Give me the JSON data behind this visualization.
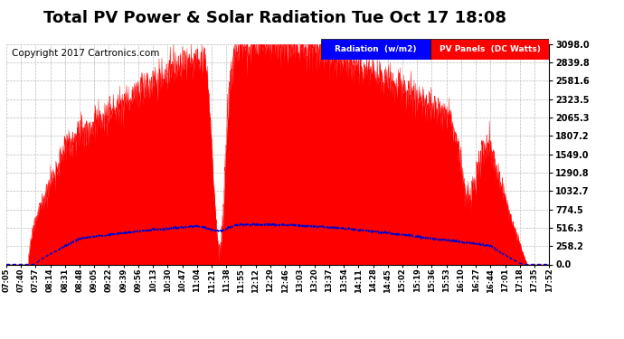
{
  "title": "Total PV Power & Solar Radiation Tue Oct 17 18:08",
  "copyright": "Copyright 2017 Cartronics.com",
  "bg_color": "#ffffff",
  "plot_bg_color": "#ffffff",
  "grid_color": "#bbbbbb",
  "y_max": 3098.0,
  "y_min": 0.0,
  "y_ticks": [
    0.0,
    258.2,
    516.3,
    774.5,
    1032.7,
    1290.8,
    1549.0,
    1807.2,
    2065.3,
    2323.5,
    2581.6,
    2839.8,
    3098.0
  ],
  "x_labels": [
    "07:05",
    "07:40",
    "07:57",
    "08:14",
    "08:31",
    "08:48",
    "09:05",
    "09:22",
    "09:39",
    "09:56",
    "10:13",
    "10:30",
    "10:47",
    "11:04",
    "11:21",
    "11:38",
    "11:55",
    "12:12",
    "12:29",
    "12:46",
    "13:03",
    "13:20",
    "13:37",
    "13:54",
    "14:11",
    "14:28",
    "14:45",
    "15:02",
    "15:19",
    "15:36",
    "15:53",
    "16:10",
    "16:27",
    "16:44",
    "17:01",
    "17:18",
    "17:35",
    "17:52"
  ],
  "legend_radiation_color": "#0000ff",
  "legend_pv_color": "#ff0000",
  "radiation_line_color": "#0000cc",
  "pv_fill_color": "#ff0000",
  "title_fontsize": 13,
  "copyright_fontsize": 7.5
}
